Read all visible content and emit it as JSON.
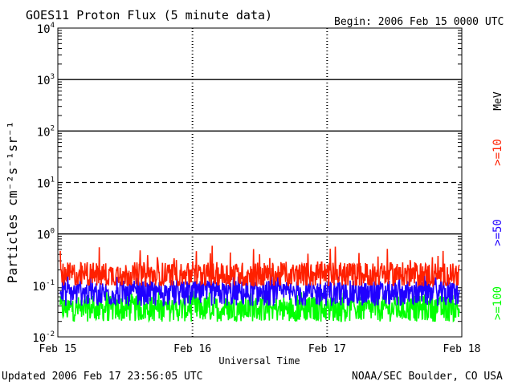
{
  "chart_data": {
    "type": "line",
    "title": "GOES11 Proton Flux (5 minute data)",
    "begin_label": "Begin: 2006 Feb 15 0000 UTC",
    "xlabel": "Universal Time",
    "ylabel": "Particles cm⁻²s⁻¹sr⁻¹",
    "yscale": "log",
    "ylim": [
      0.01,
      10000
    ],
    "yticks": [
      {
        "base": "10",
        "exp": "4"
      },
      {
        "base": "10",
        "exp": "3"
      },
      {
        "base": "10",
        "exp": "2"
      },
      {
        "base": "10",
        "exp": "1"
      },
      {
        "base": "10",
        "exp": "0"
      },
      {
        "base": "10",
        "exp": "-1"
      },
      {
        "base": "10",
        "exp": "-2"
      }
    ],
    "xticks": [
      "Feb 15",
      "Feb 16",
      "Feb 17",
      "Feb 18"
    ],
    "xlim": [
      "2006-02-15T00:00",
      "2006-02-18T00:00"
    ],
    "unit_label": "MeV",
    "thresholds": [
      {
        "value": 10,
        "style": "dashed"
      },
      {
        "value": 100,
        "style": "solid"
      },
      {
        "value": 1000,
        "style": "solid"
      },
      {
        "value": 1,
        "style": "solid"
      }
    ],
    "series": [
      {
        "name": ">=10",
        "color": "#ff2000",
        "base": 0.16,
        "min": 0.1,
        "max": 0.6
      },
      {
        "name": ">=50",
        "color": "#2000ff",
        "base": 0.07,
        "min": 0.04,
        "max": 0.17
      },
      {
        "name": ">=100",
        "color": "#00ff00",
        "base": 0.035,
        "min": 0.018,
        "max": 0.08
      }
    ]
  },
  "footer": {
    "updated": "Updated 2006 Feb 17 23:56:05 UTC",
    "source": "NOAA/SEC Boulder, CO USA"
  }
}
